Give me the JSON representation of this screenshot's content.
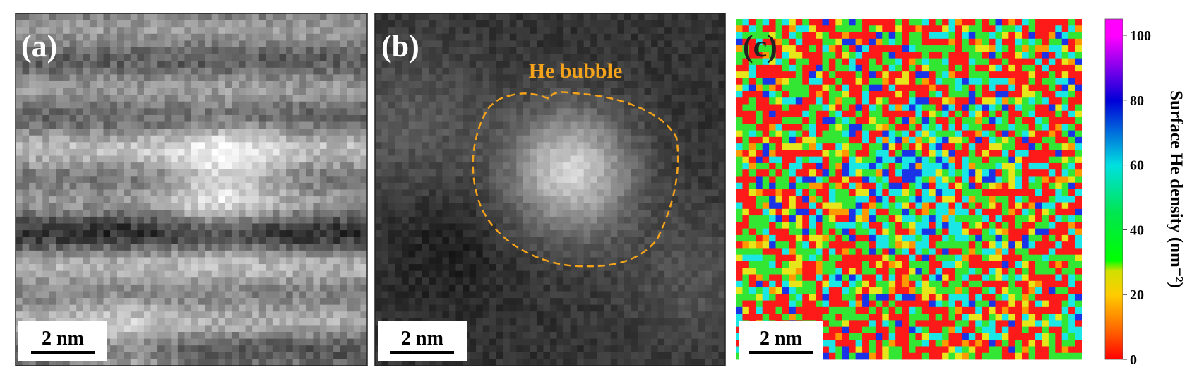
{
  "panels": [
    {
      "label": "(a)",
      "scale_bar": "2 nm"
    },
    {
      "label": "(b)",
      "scale_bar": "2 nm",
      "annotation": "He bubble"
    },
    {
      "label": "(c)",
      "scale_bar": "2 nm"
    }
  ],
  "colorbar": {
    "label": "Surface He density (nm⁻²)",
    "lim": [
      0,
      105
    ],
    "ticks": [
      0,
      20,
      40,
      60,
      80,
      100
    ]
  }
}
